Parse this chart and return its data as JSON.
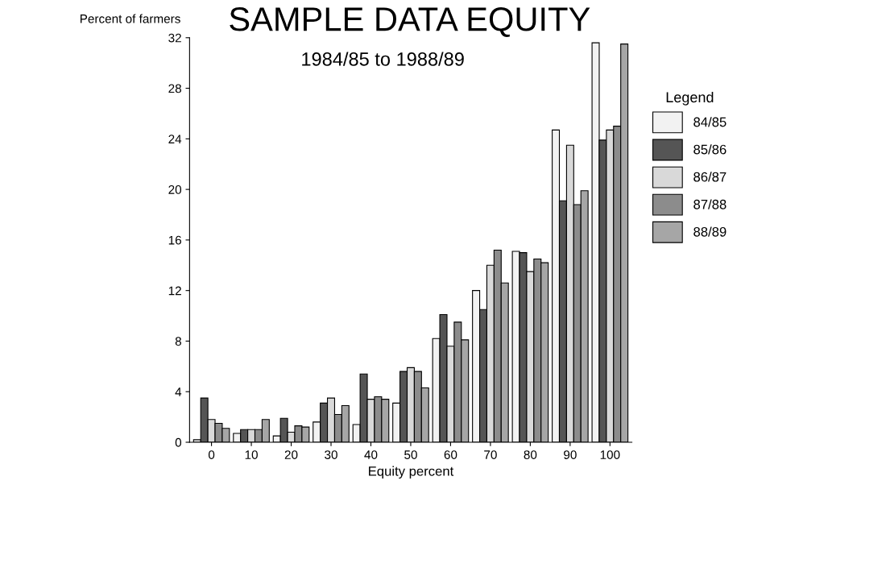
{
  "chart_data": {
    "type": "bar",
    "title": "SAMPLE DATA EQUITY",
    "subtitle": "1984/85 to 1988/89",
    "xlabel": "Equity percent",
    "ylabel": "Percent of farmers",
    "legend_title": "Legend",
    "legend": "right",
    "grid": false,
    "categories": [
      "0",
      "10",
      "20",
      "30",
      "40",
      "50",
      "60",
      "70",
      "80",
      "90",
      "100"
    ],
    "ylim": [
      0,
      32
    ],
    "yticks": [
      0,
      4,
      8,
      12,
      16,
      20,
      24,
      28,
      32
    ],
    "series": [
      {
        "name": "84/85",
        "color": "#f2f2f2",
        "values": [
          0.2,
          0.7,
          0.5,
          1.6,
          1.4,
          3.1,
          8.2,
          12.0,
          15.1,
          24.7,
          31.6
        ]
      },
      {
        "name": "85/86",
        "color": "#555555",
        "values": [
          3.5,
          1.0,
          1.9,
          3.1,
          5.4,
          5.6,
          10.1,
          10.5,
          15.0,
          19.1,
          23.9
        ]
      },
      {
        "name": "86/87",
        "color": "#d9d9d9",
        "values": [
          1.8,
          1.0,
          0.8,
          3.5,
          3.4,
          5.9,
          7.6,
          14.0,
          13.5,
          23.5,
          24.7
        ]
      },
      {
        "name": "87/88",
        "color": "#8c8c8c",
        "values": [
          1.5,
          1.0,
          1.3,
          2.2,
          3.6,
          5.6,
          9.5,
          15.2,
          14.5,
          18.8,
          25.0
        ]
      },
      {
        "name": "88/89",
        "color": "#a6a6a6",
        "values": [
          1.1,
          1.8,
          1.2,
          2.9,
          3.4,
          4.3,
          8.1,
          12.6,
          14.2,
          19.9,
          31.5
        ]
      }
    ]
  }
}
